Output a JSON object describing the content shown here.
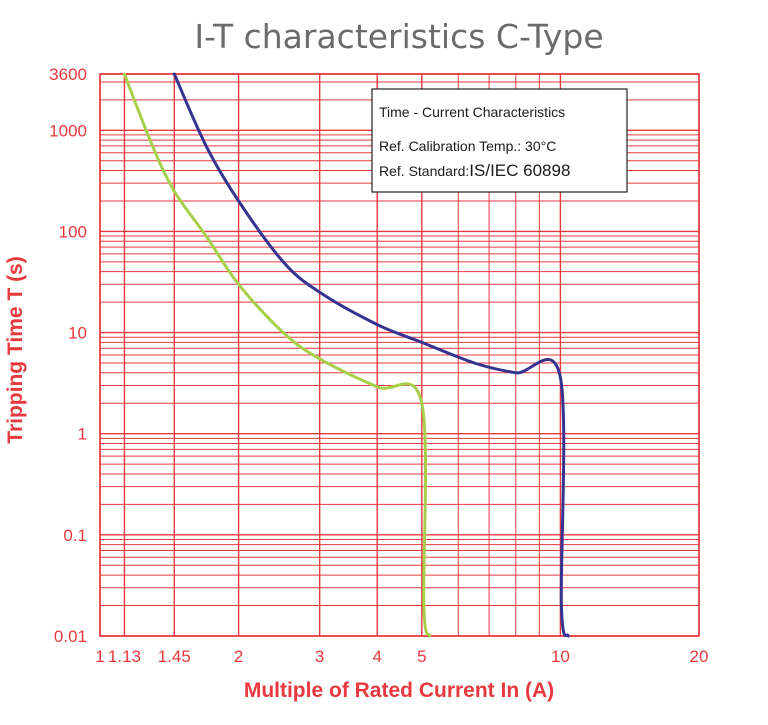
{
  "chart_data": {
    "type": "line",
    "title": "I-T characteristics C-Type",
    "xlabel": "Multiple of Rated Current In (A)",
    "ylabel": "Tripping Time T (s)",
    "x_scale": "log",
    "y_scale": "log",
    "xlim": [
      1,
      20
    ],
    "ylim": [
      0.01,
      3600
    ],
    "x_ticks": [
      {
        "value": 1,
        "label": "1"
      },
      {
        "value": 1.13,
        "label": "1.13"
      },
      {
        "value": 1.45,
        "label": "1.45"
      },
      {
        "value": 2,
        "label": "2"
      },
      {
        "value": 3,
        "label": "3"
      },
      {
        "value": 4,
        "label": "4"
      },
      {
        "value": 5,
        "label": "5"
      },
      {
        "value": 10,
        "label": "10"
      },
      {
        "value": 20,
        "label": "20"
      }
    ],
    "y_ticks": [
      {
        "value": 0.01,
        "label": "0.01"
      },
      {
        "value": 0.1,
        "label": "0.1"
      },
      {
        "value": 1,
        "label": "1"
      },
      {
        "value": 10,
        "label": "10"
      },
      {
        "value": 100,
        "label": "100"
      },
      {
        "value": 1000,
        "label": "1000"
      },
      {
        "value": 3600,
        "label": "3600"
      }
    ],
    "grid": true,
    "grid_color": "#e8393f",
    "legend": {
      "placement": "top-right",
      "lines": [
        {
          "text": "Time - Current Characteristics"
        },
        {
          "text": "Ref. Calibration Temp.: 30°C"
        },
        {
          "prefix": "Ref. Standard:",
          "text": "IS/IEC 60898"
        }
      ]
    },
    "series": [
      {
        "color": "#a6cf4a",
        "points": [
          [
            1.13,
            3600
          ],
          [
            1.3,
            700
          ],
          [
            1.45,
            250
          ],
          [
            1.7,
            90
          ],
          [
            2,
            30
          ],
          [
            2.5,
            10
          ],
          [
            3,
            5.5
          ],
          [
            4,
            2.9
          ],
          [
            5,
            2
          ],
          [
            5.05,
            0.02
          ],
          [
            5.2,
            0.01
          ]
        ]
      },
      {
        "color": "#34338f",
        "points": [
          [
            1.45,
            3600
          ],
          [
            1.7,
            700
          ],
          [
            2,
            200
          ],
          [
            2.5,
            50
          ],
          [
            3,
            25
          ],
          [
            4,
            12
          ],
          [
            5,
            8
          ],
          [
            6.5,
            5
          ],
          [
            8,
            4
          ],
          [
            10,
            3.6
          ],
          [
            10.05,
            0.02
          ],
          [
            10.4,
            0.01
          ]
        ]
      }
    ]
  }
}
